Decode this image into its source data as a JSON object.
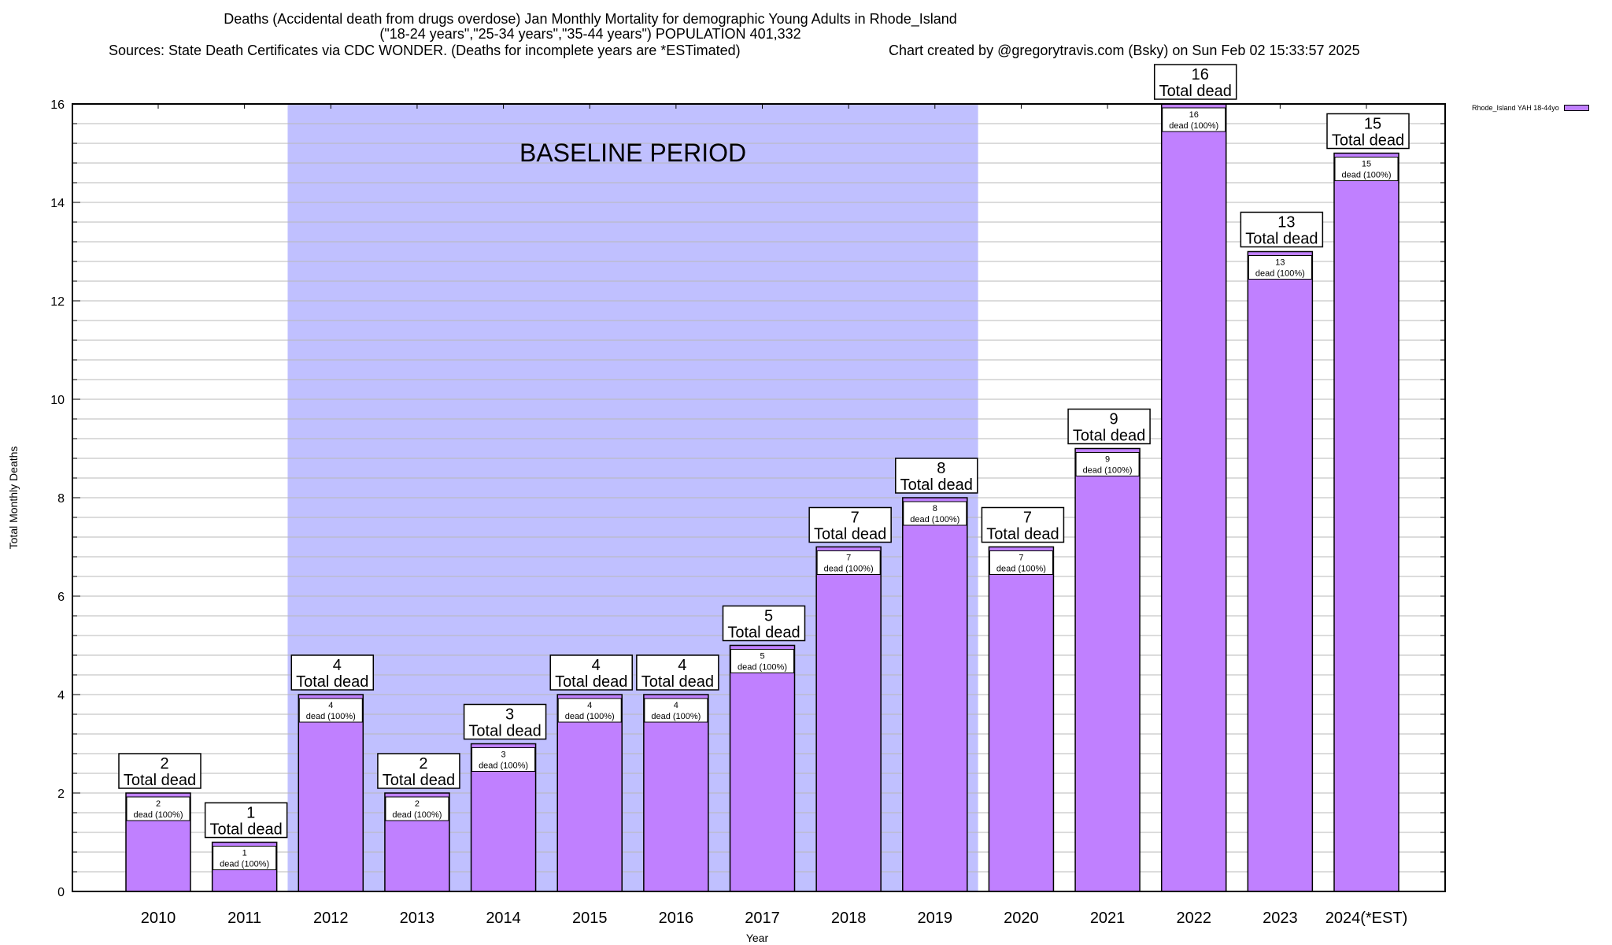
{
  "chart_data": {
    "type": "bar",
    "title_lines": [
      "Deaths (Accidental death from drugs overdose) Jan Monthly Mortality for demographic Young Adults in Rhode_Island",
      "(\"18-24 years\",\"25-34 years\",\"35-44 years\") POPULATION 401,332"
    ],
    "sources_text": "Sources: State Death Certificates via CDC WONDER. (Deaths for incomplete years are *ESTimated)",
    "credit_text": "Chart created by @gregorytravis.com (Bsky) on Sun Feb 02 15:33:57 2025",
    "xlabel": "Year",
    "ylabel": "Total Monthly Deaths",
    "ylim": [
      0,
      16
    ],
    "yticks": [
      0,
      2,
      4,
      6,
      8,
      10,
      12,
      14,
      16
    ],
    "minor_grid_step": 0.4,
    "grid": true,
    "categories": [
      "2010",
      "2011",
      "2012",
      "2013",
      "2014",
      "2015",
      "2016",
      "2017",
      "2018",
      "2019",
      "2020",
      "2021",
      "2022",
      "2023",
      "2024(*EST)"
    ],
    "series": [
      {
        "name": "Rhode_Island YAH 18-44yo",
        "color": "#c080ff",
        "values": [
          2,
          1,
          4,
          2,
          3,
          4,
          4,
          5,
          7,
          8,
          7,
          9,
          16,
          13,
          15
        ]
      }
    ],
    "total_label_suffix": "Total dead",
    "inner_label_suffix": "dead (100%)",
    "annotation": {
      "text": "BASELINE PERIOD",
      "start_category": "2012",
      "end_category": "2019",
      "color": "#c0c0ff"
    },
    "legend_position": "top-right"
  }
}
